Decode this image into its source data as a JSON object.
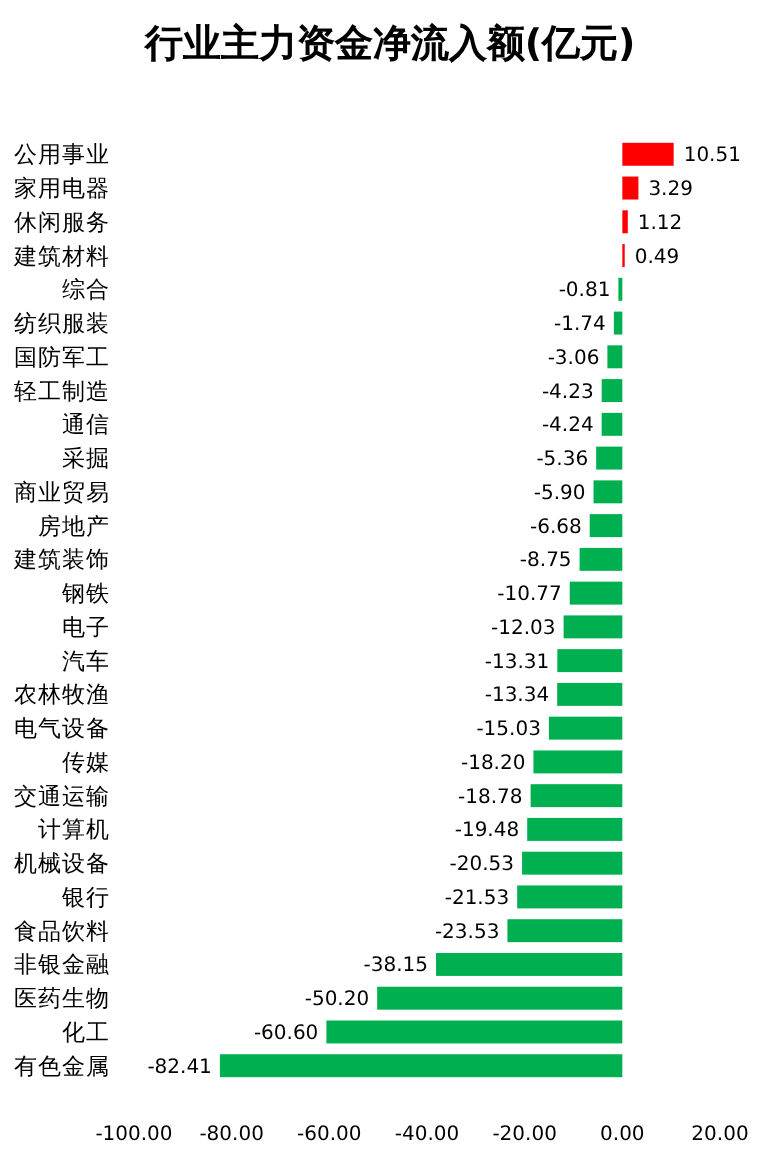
{
  "chart_data": {
    "type": "bar",
    "orientation": "horizontal",
    "title": "行业主力资金净流入额(亿元)",
    "categories": [
      "公用事业",
      "家用电器",
      "休闲服务",
      "建筑材料",
      "综合",
      "纺织服装",
      "国防军工",
      "轻工制造",
      "通信",
      "采掘",
      "商业贸易",
      "房地产",
      "建筑装饰",
      "钢铁",
      "电子",
      "汽车",
      "农林牧渔",
      "电气设备",
      "传媒",
      "交通运输",
      "计算机",
      "机械设备",
      "银行",
      "食品饮料",
      "非银金融",
      "医药生物",
      "化工",
      "有色金属"
    ],
    "values": [
      10.51,
      3.29,
      1.12,
      0.49,
      -0.81,
      -1.74,
      -3.06,
      -4.23,
      -4.24,
      -5.36,
      -5.9,
      -6.68,
      -8.75,
      -10.77,
      -12.03,
      -13.31,
      -13.34,
      -15.03,
      -18.2,
      -18.78,
      -19.48,
      -20.53,
      -21.53,
      -23.53,
      -38.15,
      -50.2,
      -60.6,
      -82.41
    ],
    "value_labels": [
      "10.51",
      "3.29",
      "1.12",
      "0.49",
      "-0.81",
      "-1.74",
      "-3.06",
      "-4.23",
      "-4.24",
      "-5.36",
      "-5.90",
      "-6.68",
      "-8.75",
      "-10.77",
      "-12.03",
      "-13.31",
      "-13.34",
      "-15.03",
      "-18.20",
      "-18.78",
      "-19.48",
      "-20.53",
      "-21.53",
      "-23.53",
      "-38.15",
      "-50.20",
      "-60.60",
      "-82.41"
    ],
    "colors": [
      "#ff0000",
      "#ff0000",
      "#ff0000",
      "#ff0000",
      "#00b050",
      "#00b050",
      "#00b050",
      "#00b050",
      "#00b050",
      "#00b050",
      "#00b050",
      "#00b050",
      "#00b050",
      "#00b050",
      "#00b050",
      "#00b050",
      "#00b050",
      "#00b050",
      "#00b050",
      "#00b050",
      "#00b050",
      "#00b050",
      "#00b050",
      "#00b050",
      "#00b050",
      "#00b050",
      "#00b050",
      "#00b050"
    ],
    "xlim": [
      -100,
      20
    ],
    "xticks": [
      {
        "value": -100,
        "label": "-100.00"
      },
      {
        "value": -80,
        "label": "-80.00"
      },
      {
        "value": -60,
        "label": "-60.00"
      },
      {
        "value": -40,
        "label": "-40.00"
      },
      {
        "value": -20,
        "label": "-20.00"
      },
      {
        "value": 0,
        "label": "0.00"
      },
      {
        "value": 20,
        "label": "20.00"
      }
    ],
    "grid": false
  }
}
